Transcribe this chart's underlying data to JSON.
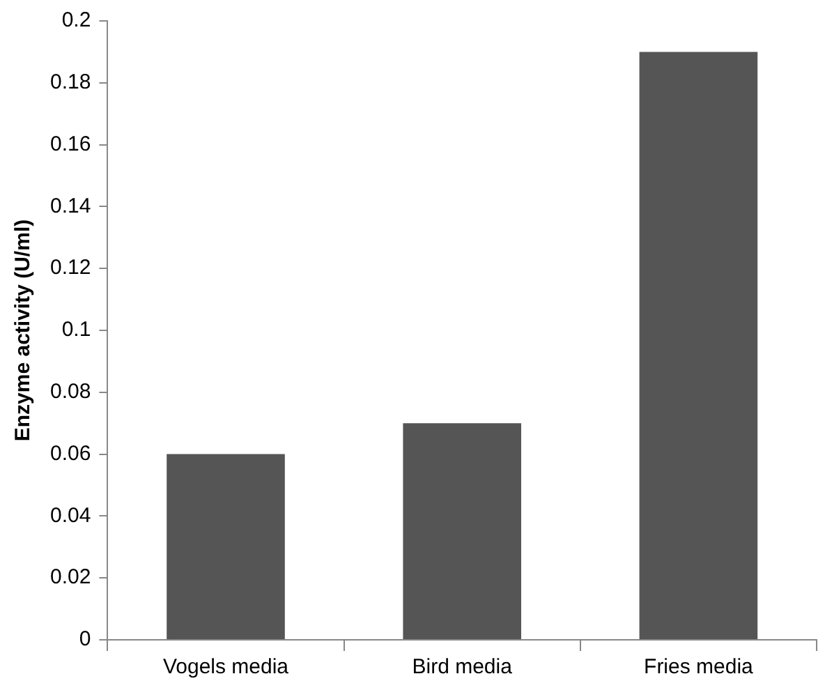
{
  "chart_data": {
    "type": "bar",
    "ylabel": "Enzyme activity (U/ml)",
    "categories": [
      "Vogels media",
      "Bird media",
      "Fries media"
    ],
    "values": [
      0.06,
      0.07,
      0.19
    ],
    "color": "#555555",
    "ylim": [
      0,
      0.2
    ],
    "yticks": [
      0,
      0.02,
      0.04,
      0.06,
      0.08,
      0.1,
      0.12,
      0.14,
      0.16,
      0.18,
      0.2
    ],
    "grid": false,
    "legend": false
  }
}
